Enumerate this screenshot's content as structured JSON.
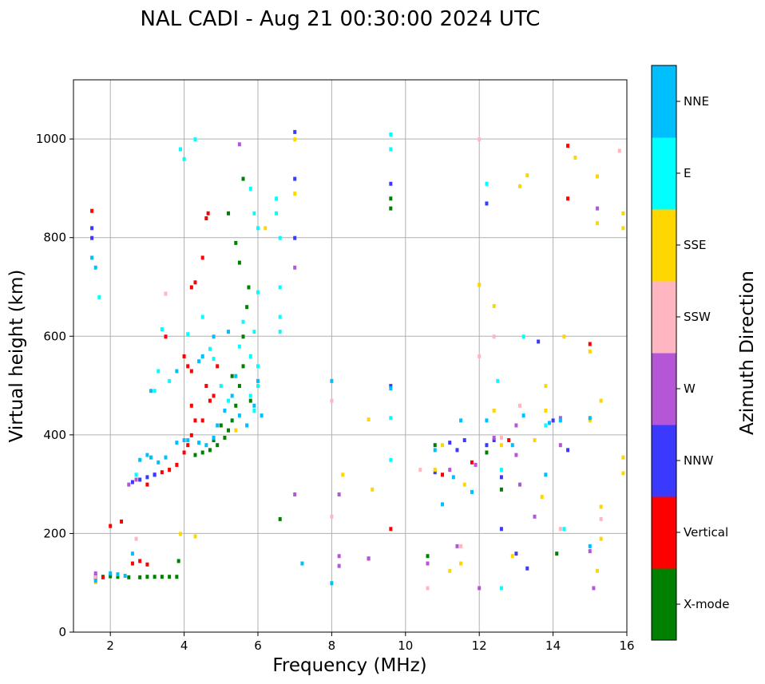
{
  "chart_data": {
    "type": "scatter",
    "title": "NAL CADI - Aug 21 00:30:00 2024 UTC",
    "xlabel": "Frequency (MHz)",
    "ylabel": "Virtual height (km)",
    "xlim": [
      1,
      16
    ],
    "ylim": [
      0,
      1120
    ],
    "xticks": [
      2,
      4,
      6,
      8,
      10,
      12,
      14,
      16
    ],
    "yticks": [
      0,
      200,
      400,
      600,
      800,
      1000
    ],
    "grid": true,
    "colorbar": {
      "label": "Azimuth Direction",
      "categories": [
        {
          "name": "X-mode",
          "color": "#008000"
        },
        {
          "name": "Vertical",
          "color": "#ff0000"
        },
        {
          "name": "NNW",
          "color": "#3a3aff"
        },
        {
          "name": "W",
          "color": "#b556d6"
        },
        {
          "name": "SSW",
          "color": "#ffb6c1"
        },
        {
          "name": "SSE",
          "color": "#ffd700"
        },
        {
          "name": "E",
          "color": "#00ffff"
        },
        {
          "name": "NNE",
          "color": "#00bfff"
        }
      ]
    },
    "series": [
      {
        "name": "X-mode",
        "points": [
          [
            1.6,
            112
          ],
          [
            1.8,
            113
          ],
          [
            2.0,
            114
          ],
          [
            2.2,
            113
          ],
          [
            2.5,
            112
          ],
          [
            2.8,
            112
          ],
          [
            3.0,
            113
          ],
          [
            3.2,
            113
          ],
          [
            3.4,
            113
          ],
          [
            3.6,
            113
          ],
          [
            3.8,
            113
          ],
          [
            3.85,
            145
          ],
          [
            4.3,
            360
          ],
          [
            4.5,
            365
          ],
          [
            4.7,
            370
          ],
          [
            4.9,
            380
          ],
          [
            5.1,
            395
          ],
          [
            5.2,
            410
          ],
          [
            5.3,
            430
          ],
          [
            5.4,
            460
          ],
          [
            5.5,
            500
          ],
          [
            5.6,
            540
          ],
          [
            5.6,
            600
          ],
          [
            5.7,
            660
          ],
          [
            5.75,
            700
          ],
          [
            5.5,
            750
          ],
          [
            5.4,
            790
          ],
          [
            5.2,
            850
          ],
          [
            5.6,
            920
          ],
          [
            6.6,
            230
          ],
          [
            9.6,
            860
          ],
          [
            9.6,
            880
          ],
          [
            10.6,
            155
          ],
          [
            10.8,
            380
          ],
          [
            12.2,
            365
          ],
          [
            12.6,
            290
          ],
          [
            14.1,
            160
          ],
          [
            4.8,
            390
          ],
          [
            5.0,
            420
          ],
          [
            5.8,
            470
          ],
          [
            5.3,
            520
          ]
        ]
      },
      {
        "name": "Vertical",
        "points": [
          [
            1.5,
            855
          ],
          [
            1.6,
            110
          ],
          [
            1.8,
            112
          ],
          [
            2.0,
            216
          ],
          [
            2.3,
            225
          ],
          [
            2.6,
            140
          ],
          [
            2.8,
            145
          ],
          [
            3.0,
            138
          ],
          [
            3.2,
            320
          ],
          [
            3.4,
            325
          ],
          [
            3.6,
            330
          ],
          [
            3.8,
            340
          ],
          [
            4.0,
            365
          ],
          [
            4.1,
            380
          ],
          [
            4.2,
            400
          ],
          [
            4.3,
            430
          ],
          [
            4.2,
            460
          ],
          [
            4.2,
            530
          ],
          [
            4.1,
            540
          ],
          [
            4.0,
            560
          ],
          [
            4.2,
            700
          ],
          [
            4.3,
            710
          ],
          [
            4.5,
            760
          ],
          [
            4.6,
            840
          ],
          [
            4.65,
            850
          ],
          [
            4.6,
            500
          ],
          [
            4.7,
            470
          ],
          [
            4.5,
            430
          ],
          [
            4.8,
            480
          ],
          [
            4.9,
            540
          ],
          [
            3.5,
            600
          ],
          [
            9.6,
            210
          ],
          [
            9.0,
            150
          ],
          [
            11.8,
            345
          ],
          [
            12.8,
            390
          ],
          [
            14.4,
            987
          ],
          [
            14.4,
            880
          ],
          [
            15.0,
            585
          ],
          [
            11.0,
            320
          ],
          [
            3.0,
            300
          ]
        ]
      },
      {
        "name": "NNW",
        "points": [
          [
            1.5,
            800
          ],
          [
            1.5,
            820
          ],
          [
            1.6,
            115
          ],
          [
            2.6,
            305
          ],
          [
            2.8,
            310
          ],
          [
            3.0,
            315
          ],
          [
            3.2,
            320
          ],
          [
            7.0,
            1015
          ],
          [
            7.0,
            920
          ],
          [
            7.0,
            800
          ],
          [
            9.6,
            500
          ],
          [
            9.6,
            910
          ],
          [
            10.8,
            325
          ],
          [
            11.2,
            385
          ],
          [
            11.4,
            370
          ],
          [
            11.6,
            390
          ],
          [
            12.2,
            870
          ],
          [
            12.2,
            380
          ],
          [
            12.4,
            390
          ],
          [
            12.6,
            315
          ],
          [
            13.3,
            130
          ],
          [
            13.6,
            590
          ],
          [
            14.0,
            430
          ],
          [
            14.4,
            370
          ],
          [
            12.6,
            210
          ],
          [
            13.0,
            160
          ]
        ]
      },
      {
        "name": "W",
        "points": [
          [
            1.6,
            120
          ],
          [
            2.5,
            300
          ],
          [
            2.7,
            310
          ],
          [
            5.5,
            990
          ],
          [
            7.0,
            280
          ],
          [
            7.0,
            740
          ],
          [
            8.2,
            280
          ],
          [
            8.2,
            155
          ],
          [
            8.2,
            135
          ],
          [
            9.0,
            150
          ],
          [
            10.6,
            140
          ],
          [
            11.2,
            330
          ],
          [
            11.4,
            175
          ],
          [
            12.0,
            90
          ],
          [
            13.0,
            420
          ],
          [
            13.0,
            360
          ],
          [
            13.1,
            300
          ],
          [
            13.5,
            235
          ],
          [
            14.2,
            435
          ],
          [
            14.2,
            380
          ],
          [
            15.2,
            860
          ],
          [
            15.1,
            90
          ],
          [
            15.0,
            165
          ],
          [
            12.4,
            395
          ],
          [
            11.9,
            340
          ]
        ]
      },
      {
        "name": "SSW",
        "points": [
          [
            1.6,
            112
          ],
          [
            2.7,
            190
          ],
          [
            3.5,
            687
          ],
          [
            8.0,
            470
          ],
          [
            8.0,
            235
          ],
          [
            10.4,
            330
          ],
          [
            10.6,
            90
          ],
          [
            12.0,
            1000
          ],
          [
            12.4,
            600
          ],
          [
            12.6,
            395
          ],
          [
            13.1,
            460
          ],
          [
            14.2,
            210
          ],
          [
            15.3,
            230
          ],
          [
            15.8,
            977
          ],
          [
            11.5,
            175
          ],
          [
            12.0,
            560
          ]
        ]
      },
      {
        "name": "SSE",
        "points": [
          [
            1.6,
            102
          ],
          [
            3.9,
            200
          ],
          [
            4.3,
            195
          ],
          [
            5.4,
            410
          ],
          [
            6.2,
            820
          ],
          [
            7.0,
            1000
          ],
          [
            7.0,
            890
          ],
          [
            8.3,
            320
          ],
          [
            9.0,
            432
          ],
          [
            9.1,
            290
          ],
          [
            10.8,
            330
          ],
          [
            11.0,
            380
          ],
          [
            11.5,
            140
          ],
          [
            11.6,
            300
          ],
          [
            12.0,
            705
          ],
          [
            12.4,
            662
          ],
          [
            12.4,
            450
          ],
          [
            12.6,
            380
          ],
          [
            12.9,
            155
          ],
          [
            13.1,
            905
          ],
          [
            13.3,
            927
          ],
          [
            13.5,
            390
          ],
          [
            13.8,
            500
          ],
          [
            13.8,
            450
          ],
          [
            13.7,
            275
          ],
          [
            14.3,
            600
          ],
          [
            14.6,
            963
          ],
          [
            15.0,
            570
          ],
          [
            15.0,
            430
          ],
          [
            15.2,
            925
          ],
          [
            15.2,
            830
          ],
          [
            15.3,
            470
          ],
          [
            15.3,
            255
          ],
          [
            15.3,
            190
          ],
          [
            15.2,
            125
          ],
          [
            15.9,
            850
          ],
          [
            15.9,
            820
          ],
          [
            15.9,
            355
          ],
          [
            15.9,
            323
          ],
          [
            11.2,
            125
          ]
        ]
      },
      {
        "name": "E",
        "points": [
          [
            1.7,
            680
          ],
          [
            2.7,
            320
          ],
          [
            3.2,
            490
          ],
          [
            3.3,
            530
          ],
          [
            3.4,
            615
          ],
          [
            3.6,
            510
          ],
          [
            3.9,
            980
          ],
          [
            4.0,
            960
          ],
          [
            4.3,
            1000
          ],
          [
            4.1,
            605
          ],
          [
            4.5,
            640
          ],
          [
            4.7,
            575
          ],
          [
            4.8,
            555
          ],
          [
            5.0,
            500
          ],
          [
            5.2,
            470
          ],
          [
            5.5,
            580
          ],
          [
            5.6,
            630
          ],
          [
            5.8,
            560
          ],
          [
            5.9,
            610
          ],
          [
            6.0,
            540
          ],
          [
            5.8,
            900
          ],
          [
            5.9,
            850
          ],
          [
            6.0,
            820
          ],
          [
            6.0,
            690
          ],
          [
            6.5,
            880
          ],
          [
            6.5,
            850
          ],
          [
            6.6,
            800
          ],
          [
            6.6,
            700
          ],
          [
            6.6,
            640
          ],
          [
            6.6,
            610
          ],
          [
            5.8,
            480
          ],
          [
            5.9,
            450
          ],
          [
            6.0,
            500
          ],
          [
            9.6,
            1010
          ],
          [
            9.6,
            980
          ],
          [
            9.6,
            435
          ],
          [
            9.6,
            350
          ],
          [
            12.2,
            910
          ],
          [
            12.5,
            510
          ],
          [
            12.6,
            330
          ],
          [
            12.6,
            90
          ],
          [
            13.2,
            600
          ],
          [
            13.8,
            420
          ],
          [
            14.3,
            210
          ]
        ]
      },
      {
        "name": "NNE",
        "points": [
          [
            1.5,
            760
          ],
          [
            1.6,
            740
          ],
          [
            1.6,
            105
          ],
          [
            2.0,
            120
          ],
          [
            2.2,
            118
          ],
          [
            2.4,
            115
          ],
          [
            2.6,
            160
          ],
          [
            2.8,
            350
          ],
          [
            3.0,
            360
          ],
          [
            3.1,
            355
          ],
          [
            3.3,
            345
          ],
          [
            3.5,
            355
          ],
          [
            3.8,
            385
          ],
          [
            4.1,
            390
          ],
          [
            4.4,
            385
          ],
          [
            4.6,
            380
          ],
          [
            4.8,
            395
          ],
          [
            4.9,
            420
          ],
          [
            5.1,
            450
          ],
          [
            5.3,
            480
          ],
          [
            5.4,
            520
          ],
          [
            5.5,
            440
          ],
          [
            5.7,
            420
          ],
          [
            5.9,
            460
          ],
          [
            6.0,
            510
          ],
          [
            6.1,
            440
          ],
          [
            5.2,
            610
          ],
          [
            4.8,
            600
          ],
          [
            4.5,
            560
          ],
          [
            4.4,
            550
          ],
          [
            3.8,
            530
          ],
          [
            3.1,
            490
          ],
          [
            4.0,
            390
          ],
          [
            7.2,
            140
          ],
          [
            8.0,
            510
          ],
          [
            8.0,
            100
          ],
          [
            9.6,
            495
          ],
          [
            10.8,
            370
          ],
          [
            11.0,
            260
          ],
          [
            11.3,
            315
          ],
          [
            11.5,
            430
          ],
          [
            11.8,
            285
          ],
          [
            12.2,
            430
          ],
          [
            12.9,
            380
          ],
          [
            13.2,
            440
          ],
          [
            13.8,
            320
          ],
          [
            13.9,
            425
          ],
          [
            14.2,
            430
          ],
          [
            15.0,
            175
          ],
          [
            15.0,
            435
          ]
        ]
      }
    ]
  }
}
